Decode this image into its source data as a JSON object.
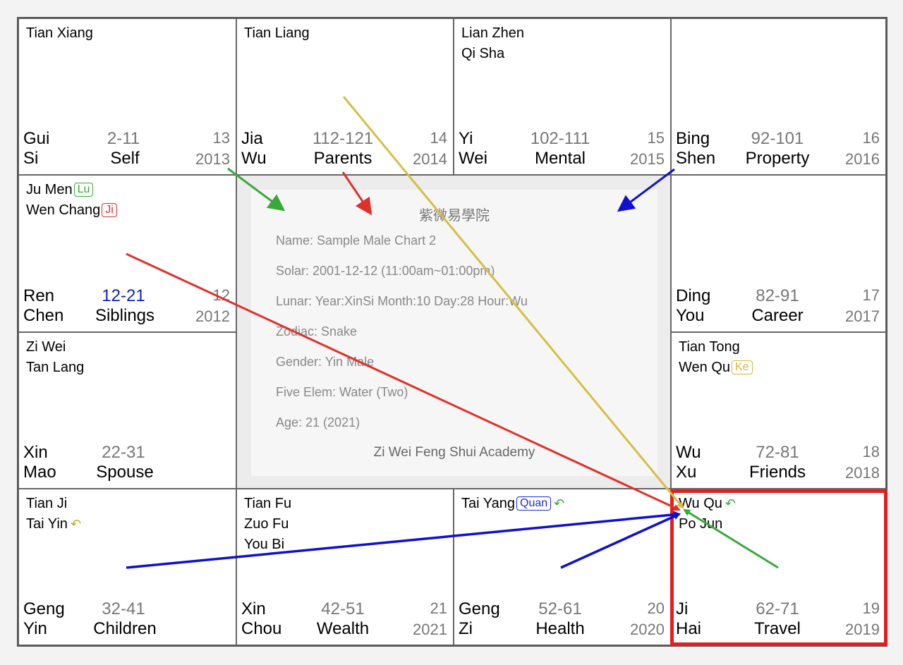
{
  "palaces": {
    "si": {
      "stars": [
        "Tian Xiang"
      ],
      "stem": "Gui",
      "branch": "Si",
      "range": "2-11",
      "name": "Self",
      "age": "13",
      "year": "2013"
    },
    "wu": {
      "stars": [
        "Tian Liang"
      ],
      "stem": "Jia",
      "branch": "Wu",
      "range": "112-121",
      "name": "Parents",
      "age": "14",
      "year": "2014"
    },
    "wei": {
      "stars": [
        "Lian Zhen",
        "Qi Sha"
      ],
      "stem": "Yi",
      "branch": "Wei",
      "range": "102-111",
      "name": "Mental",
      "age": "15",
      "year": "2015"
    },
    "shen": {
      "stars": [],
      "stem": "Bing",
      "branch": "Shen",
      "range": "92-101",
      "name": "Property",
      "age": "16",
      "year": "2016"
    },
    "chen": {
      "stars": [
        "Ju Men",
        "Wen Chang"
      ],
      "badges": [
        "Lu",
        "Ji"
      ],
      "stem": "Ren",
      "branch": "Chen",
      "range": "12-21",
      "name": "Siblings",
      "age": "12",
      "year": "2012"
    },
    "you": {
      "stars": [],
      "stem": "Ding",
      "branch": "You",
      "range": "82-91",
      "name": "Career",
      "age": "17",
      "year": "2017"
    },
    "mao": {
      "stars": [
        "Zi Wei",
        "Tan Lang"
      ],
      "stem": "Xin",
      "branch": "Mao",
      "range": "22-31",
      "name": "Spouse",
      "age": "",
      "year": ""
    },
    "xu": {
      "stars": [
        "Tian Tong",
        "Wen Qu"
      ],
      "badges": [
        "Ke"
      ],
      "stem": "Wu",
      "branch": "Xu",
      "range": "72-81",
      "name": "Friends",
      "age": "18",
      "year": "2018"
    },
    "yin": {
      "stars": [
        "Tian Ji",
        "Tai Yin"
      ],
      "stem": "Geng",
      "branch": "Yin",
      "range": "32-41",
      "name": "Children",
      "age": "",
      "year": ""
    },
    "chou": {
      "stars": [
        "Tian Fu",
        "Zuo Fu",
        "You Bi"
      ],
      "stem": "Xin",
      "branch": "Chou",
      "range": "42-51",
      "name": "Wealth",
      "age": "21",
      "year": "2021"
    },
    "zi": {
      "stars": [
        "Tai Yang"
      ],
      "badges": [
        "Quan"
      ],
      "stem": "Geng",
      "branch": "Zi",
      "range": "52-61",
      "name": "Health",
      "age": "20",
      "year": "2020"
    },
    "hai": {
      "stars": [
        "Wu Qu",
        "Po Jun"
      ],
      "stem": "Ji",
      "branch": "Hai",
      "range": "62-71",
      "name": "Travel",
      "age": "19",
      "year": "2019"
    }
  },
  "center": {
    "title": "紫微易學院",
    "name": "Name:  Sample Male Chart 2",
    "solar": "Solar:  2001-12-12 (11:00am~01:00pm)",
    "lunar": "Lunar:  Year:XinSi Month:10 Day:28 Hour:Wu",
    "zodiac": "Zodiac:  Snake",
    "gender": "Gender:  Yin Male",
    "element": "Five Elem:  Water (Two)",
    "age": "Age:  21 (2021)",
    "footer": "Zi Wei Feng Shui Academy"
  },
  "colors": {
    "lu": "#3aa83a",
    "ji": "#e0302a",
    "ke": "#d4b83c",
    "quan": "#1d2fd0",
    "highlight": "#e02020"
  },
  "icons": [
    "swirl-arrow-icon"
  ]
}
